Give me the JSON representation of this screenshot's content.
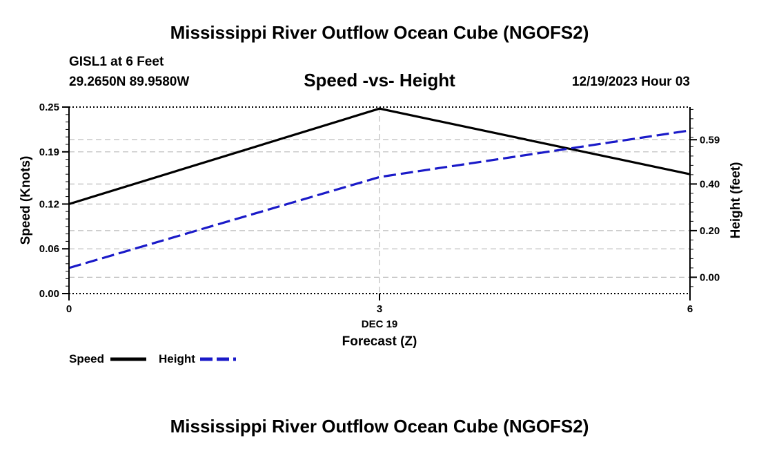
{
  "page": {
    "title_top": "Mississippi River Outflow Ocean Cube (NGOFS2)",
    "title_bottom": "Mississippi River Outflow Ocean Cube (NGOFS2)"
  },
  "header": {
    "station": "GISL1 at 6 Feet",
    "coords": "29.2650N  89.9580W",
    "subtitle": "Speed -vs- Height",
    "datetime": "12/19/2023 Hour 03"
  },
  "chart_data": {
    "type": "line",
    "title": "Speed -vs- Height",
    "x": [
      0,
      3,
      6
    ],
    "x_ticks": [
      "0",
      "3",
      "6"
    ],
    "x_date_label": "DEC 19",
    "xlabel": "Forecast (Z)",
    "xlim": [
      0,
      6
    ],
    "ylabel_left": "Speed (Knots)",
    "ylim_left": [
      0,
      0.25
    ],
    "y_ticks_left": [
      0.0,
      0.06,
      0.12,
      0.19,
      0.25
    ],
    "y_tick_labels_left": [
      "0.00",
      "0.06",
      "0.12",
      "0.19",
      "0.25"
    ],
    "ylabel_right": "Height (feet)",
    "ylim_right": [
      -0.07,
      0.73
    ],
    "y_ticks_right": [
      0.0,
      0.2,
      0.4,
      0.59
    ],
    "y_tick_labels_right": [
      "0.00",
      "0.20",
      "0.40",
      "0.59"
    ],
    "grid": true,
    "series": [
      {
        "name": "Speed",
        "axis": "left",
        "values": [
          0.12,
          0.248,
          0.16
        ],
        "color": "#000000",
        "style": "solid"
      },
      {
        "name": "Height",
        "axis": "right",
        "values": [
          0.04,
          0.43,
          0.63
        ],
        "color": "#1a1ac8",
        "style": "dashed"
      }
    ],
    "legend": [
      "Speed",
      "Height"
    ]
  }
}
